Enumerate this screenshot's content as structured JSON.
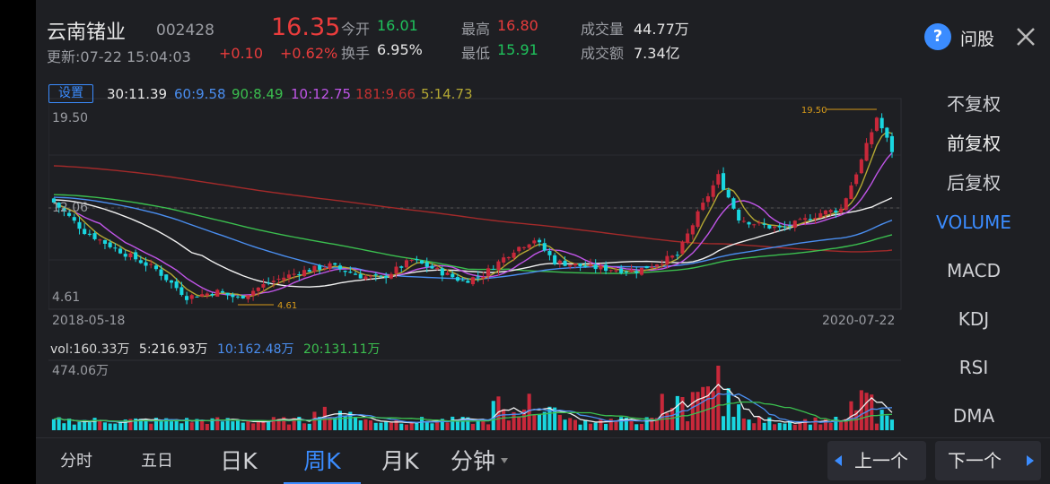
{
  "header": {
    "stock_name": "云南锗业",
    "stock_code": "002428",
    "price": "16.35",
    "update_time": "更新:07-22 15:04:03",
    "change": "+0.10",
    "change_pct": "+0.62%",
    "open_label": "今开",
    "open_value": "16.01",
    "turnover_label": "换手",
    "turnover_value": "6.95%",
    "high_label": "最高",
    "high_value": "16.80",
    "low_label": "最低",
    "low_value": "15.91",
    "volume_label": "成交量",
    "volume_value": "44.77万",
    "amount_label": "成交额",
    "amount_value": "7.34亿",
    "help_label": "问股",
    "help_icon": "question-circle-icon",
    "close_icon": "close-icon"
  },
  "ma_bar": {
    "settings_label": "设置",
    "items": [
      {
        "text": "30:11.39",
        "color": "#e6e6e6"
      },
      {
        "text": "60:9.58",
        "color": "#4a8ef0"
      },
      {
        "text": "90:8.49",
        "color": "#3bbf4f"
      },
      {
        "text": "10:12.75",
        "color": "#c055e8"
      },
      {
        "text": "181:9.66",
        "color": "#c33131"
      },
      {
        "text": "5:14.73",
        "color": "#b4a833"
      }
    ]
  },
  "kline": {
    "y_high_label": "19.50",
    "y_low_label": "4.61",
    "ref_label": "12.06",
    "start_date": "2018-05-18",
    "end_date": "2020-07-22",
    "max_marker": "19.50",
    "min_marker": "4.61"
  },
  "volume": {
    "header_label": "vol:160.33万",
    "ma5_label": "5:216.93万",
    "ma10_label": "10:162.48万",
    "ma20_label": "20:131.11万",
    "max_label": "474.06万"
  },
  "right_panel": {
    "items": [
      "不复权",
      "前复权",
      "后复权",
      "VOLUME",
      "MACD",
      "KDJ",
      "RSI",
      "DMA"
    ],
    "selected_adjust": "前复权",
    "selected_indicator": "VOLUME"
  },
  "bottom_tabs": {
    "tabs": [
      "分时",
      "五日",
      "日K",
      "周K",
      "月K",
      "分钟"
    ],
    "selected": "周K",
    "prev_label": "上一个",
    "next_label": "下一个"
  },
  "colors": {
    "up": "#e93c3c",
    "down": "#1fc25c",
    "up_candle": "#c8283a",
    "down_candle": "#19d6e0",
    "accent": "#3b8cff",
    "background": "#1e1f23"
  }
}
